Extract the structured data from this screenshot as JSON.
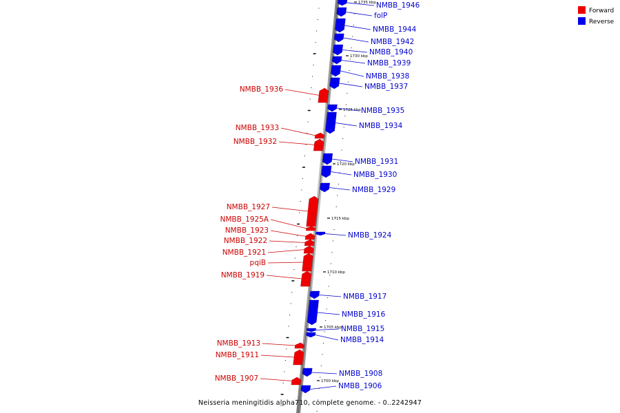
{
  "colors": {
    "forward": "#ee0000",
    "reverse": "#0000ee",
    "forward_label": "#cc0000",
    "reverse_label": "#0000cc",
    "backbone": "#9a9a9a"
  },
  "legend": {
    "forward": "Forward",
    "reverse": "Reverse"
  },
  "caption": "Neisseria meningitidis alpha710, complete genome. - 0..2242947",
  "ticks": [
    "1735 kbp",
    "1730 kbp",
    "1725 kbp",
    "1720 kbp",
    "1715 kbp",
    "1710 kbp",
    "1705 kbp",
    "1700 kbp"
  ],
  "genes": [
    {
      "name": "NMBB_1946",
      "strand": "reverse"
    },
    {
      "name": "folP",
      "strand": "reverse"
    },
    {
      "name": "NMBB_1944",
      "strand": "reverse"
    },
    {
      "name": "NMBB_1942",
      "strand": "reverse"
    },
    {
      "name": "NMBB_1940",
      "strand": "reverse"
    },
    {
      "name": "NMBB_1939",
      "strand": "reverse"
    },
    {
      "name": "NMBB_1938",
      "strand": "reverse"
    },
    {
      "name": "NMBB_1937",
      "strand": "reverse"
    },
    {
      "name": "NMBB_1936",
      "strand": "forward"
    },
    {
      "name": "NMBB_1935",
      "strand": "reverse"
    },
    {
      "name": "NMBB_1934",
      "strand": "reverse"
    },
    {
      "name": "NMBB_1933",
      "strand": "forward"
    },
    {
      "name": "NMBB_1932",
      "strand": "forward"
    },
    {
      "name": "NMBB_1931",
      "strand": "reverse"
    },
    {
      "name": "NMBB_1930",
      "strand": "reverse"
    },
    {
      "name": "NMBB_1929",
      "strand": "reverse"
    },
    {
      "name": "NMBB_1927",
      "strand": "forward"
    },
    {
      "name": "NMBB_1925A",
      "strand": "forward"
    },
    {
      "name": "NMBB_1923",
      "strand": "forward"
    },
    {
      "name": "NMBB_1924",
      "strand": "reverse"
    },
    {
      "name": "NMBB_1922",
      "strand": "forward"
    },
    {
      "name": "NMBB_1921",
      "strand": "forward"
    },
    {
      "name": "pqiB",
      "strand": "forward"
    },
    {
      "name": "NMBB_1919",
      "strand": "forward"
    },
    {
      "name": "NMBB_1917",
      "strand": "reverse"
    },
    {
      "name": "NMBB_1916",
      "strand": "reverse"
    },
    {
      "name": "NMBB_1915",
      "strand": "reverse"
    },
    {
      "name": "NMBB_1914",
      "strand": "reverse"
    },
    {
      "name": "NMBB_1913",
      "strand": "forward"
    },
    {
      "name": "NMBB_1911",
      "strand": "forward"
    },
    {
      "name": "NMBB_1908",
      "strand": "reverse"
    },
    {
      "name": "NMBB_1907",
      "strand": "forward"
    },
    {
      "name": "NMBB_1906",
      "strand": "reverse"
    }
  ]
}
